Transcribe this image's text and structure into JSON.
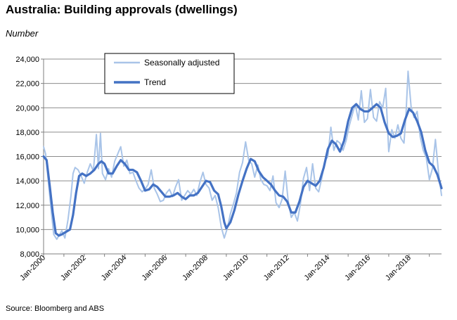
{
  "chart_data": {
    "type": "line",
    "title": "Australia: Building approvals (dwellings)",
    "ylabel": "Number",
    "source": "Source: Bloomberg and ABS",
    "ylim": [
      8000,
      24000
    ],
    "xlim": [
      2000,
      2019.6
    ],
    "yticks": [
      8000,
      10000,
      12000,
      14000,
      16000,
      18000,
      20000,
      22000,
      24000
    ],
    "yticklabels": [
      "8,000",
      "10,000",
      "12,000",
      "14,000",
      "16,000",
      "18,000",
      "20,000",
      "22,000",
      "24,000"
    ],
    "xticks": [
      2000,
      2002,
      2004,
      2006,
      2008,
      2010,
      2012,
      2014,
      2016,
      2018
    ],
    "xticklabels": [
      "Jan-2000",
      "Jan-2002",
      "Jan-2004",
      "Jan-2006",
      "Jan-2008",
      "Jan-2010",
      "Jan-2012",
      "Jan-2014",
      "Jan-2016",
      "Jan-2018"
    ],
    "grid": true,
    "legend_position": "top-left",
    "series": [
      {
        "name": "Seasonally adjusted",
        "color": "#a9c4e8",
        "x": [
          2000.0,
          2000.1,
          2000.2,
          2000.35,
          2000.5,
          2000.65,
          2000.75,
          2000.9,
          2001.05,
          2001.2,
          2001.35,
          2001.45,
          2001.55,
          2001.7,
          2001.85,
          2002.0,
          2002.15,
          2002.3,
          2002.45,
          2002.6,
          2002.7,
          2002.8,
          2002.9,
          2003.05,
          2003.2,
          2003.35,
          2003.5,
          2003.65,
          2003.8,
          2003.95,
          2004.1,
          2004.25,
          2004.4,
          2004.55,
          2004.7,
          2004.85,
          2005.0,
          2005.15,
          2005.3,
          2005.45,
          2005.6,
          2005.75,
          2005.9,
          2006.05,
          2006.2,
          2006.35,
          2006.5,
          2006.65,
          2006.8,
          2006.95,
          2007.1,
          2007.25,
          2007.4,
          2007.55,
          2007.7,
          2007.85,
          2008.0,
          2008.15,
          2008.3,
          2008.45,
          2008.6,
          2008.75,
          2008.9,
          2009.05,
          2009.2,
          2009.35,
          2009.5,
          2009.65,
          2009.8,
          2009.95,
          2010.1,
          2010.25,
          2010.4,
          2010.55,
          2010.7,
          2010.85,
          2011.0,
          2011.15,
          2011.3,
          2011.45,
          2011.6,
          2011.75,
          2011.9,
          2012.05,
          2012.2,
          2012.35,
          2012.5,
          2012.65,
          2012.8,
          2012.95,
          2013.1,
          2013.25,
          2013.4,
          2013.55,
          2013.7,
          2013.85,
          2014.0,
          2014.15,
          2014.3,
          2014.45,
          2014.6,
          2014.75,
          2014.9,
          2015.05,
          2015.2,
          2015.35,
          2015.5,
          2015.65,
          2015.8,
          2015.95,
          2016.1,
          2016.25,
          2016.4,
          2016.55,
          2016.7,
          2016.85,
          2017.0,
          2017.15,
          2017.3,
          2017.45,
          2017.6,
          2017.75,
          2017.85,
          2017.95,
          2018.1,
          2018.25,
          2018.4,
          2018.55,
          2018.7,
          2018.85,
          2019.0,
          2019.15,
          2019.3,
          2019.45,
          2019.6
        ],
        "values": [
          16800,
          16200,
          14500,
          12000,
          9600,
          9200,
          9500,
          9900,
          9300,
          10800,
          12800,
          14600,
          15100,
          14900,
          14400,
          13800,
          14700,
          15400,
          14800,
          17800,
          15000,
          17900,
          14600,
          14100,
          15000,
          14300,
          15600,
          16200,
          16800,
          15200,
          15700,
          14600,
          14700,
          14000,
          13400,
          13100,
          13300,
          13700,
          14900,
          13400,
          12900,
          12300,
          12400,
          13000,
          13300,
          12700,
          13500,
          14100,
          12400,
          12800,
          13200,
          12900,
          13300,
          12800,
          13900,
          14700,
          13700,
          13400,
          12400,
          12800,
          11800,
          10200,
          9300,
          10100,
          11300,
          12100,
          13000,
          14700,
          15500,
          17200,
          15700,
          15400,
          14300,
          15300,
          14100,
          13700,
          13600,
          13200,
          14400,
          12200,
          11800,
          12500,
          14800,
          12300,
          11000,
          11400,
          10700,
          12100,
          14200,
          15100,
          13200,
          15400,
          13400,
          13100,
          14200,
          15600,
          16000,
          18400,
          16500,
          17300,
          17100,
          16500,
          17300,
          18500,
          19400,
          20300,
          19000,
          21400,
          18800,
          19100,
          21500,
          19200,
          18900,
          20500,
          20000,
          21600,
          16400,
          18200,
          17500,
          18600,
          17500,
          17100,
          19500,
          23000,
          20100,
          19200,
          19700,
          17600,
          16500,
          15900,
          14100,
          15000,
          17400,
          14700,
          12800
        ]
      },
      {
        "name": "Trend",
        "color": "#4472c4",
        "x": [
          2000.0,
          2000.15,
          2000.3,
          2000.45,
          2000.6,
          2000.75,
          2000.9,
          2001.1,
          2001.3,
          2001.45,
          2001.6,
          2001.75,
          2001.9,
          2002.1,
          2002.3,
          2002.5,
          2002.7,
          2002.85,
          2003.0,
          2003.2,
          2003.4,
          2003.6,
          2003.8,
          2004.0,
          2004.2,
          2004.4,
          2004.6,
          2004.8,
          2005.0,
          2005.2,
          2005.4,
          2005.6,
          2005.8,
          2006.0,
          2006.2,
          2006.4,
          2006.6,
          2006.8,
          2007.0,
          2007.2,
          2007.4,
          2007.6,
          2007.8,
          2008.0,
          2008.2,
          2008.4,
          2008.6,
          2008.75,
          2008.9,
          2009.0,
          2009.2,
          2009.4,
          2009.6,
          2009.8,
          2010.0,
          2010.2,
          2010.4,
          2010.6,
          2010.8,
          2011.0,
          2011.2,
          2011.4,
          2011.6,
          2011.8,
          2012.0,
          2012.2,
          2012.4,
          2012.6,
          2012.8,
          2013.0,
          2013.2,
          2013.4,
          2013.6,
          2013.8,
          2014.0,
          2014.2,
          2014.4,
          2014.6,
          2014.8,
          2015.0,
          2015.2,
          2015.4,
          2015.6,
          2015.8,
          2016.0,
          2016.2,
          2016.4,
          2016.6,
          2016.8,
          2017.0,
          2017.2,
          2017.4,
          2017.6,
          2017.8,
          2018.0,
          2018.2,
          2018.4,
          2018.6,
          2018.8,
          2019.0,
          2019.2,
          2019.4,
          2019.6
        ],
        "values": [
          16000,
          15700,
          13600,
          11400,
          9700,
          9500,
          9600,
          9800,
          10000,
          11200,
          13000,
          14400,
          14600,
          14400,
          14600,
          14900,
          15400,
          15600,
          15400,
          14600,
          14600,
          15200,
          15700,
          15400,
          14900,
          14900,
          14700,
          14000,
          13200,
          13300,
          13700,
          13500,
          13100,
          12700,
          12700,
          12800,
          13000,
          12700,
          12500,
          12800,
          12800,
          13000,
          13500,
          14000,
          13900,
          13200,
          12900,
          11900,
          10600,
          10100,
          10600,
          11600,
          12900,
          14000,
          15000,
          15800,
          15600,
          14800,
          14300,
          14000,
          13700,
          13200,
          12800,
          12700,
          12300,
          11400,
          11400,
          12300,
          13500,
          14000,
          13800,
          13600,
          14000,
          15100,
          16600,
          17300,
          17000,
          16400,
          17300,
          18900,
          20000,
          20300,
          19900,
          19700,
          19700,
          20000,
          20300,
          20000,
          18800,
          17900,
          17600,
          17700,
          17900,
          19000,
          19900,
          19600,
          18900,
          18000,
          16500,
          15500,
          15200,
          14500,
          13400
        ]
      }
    ]
  }
}
